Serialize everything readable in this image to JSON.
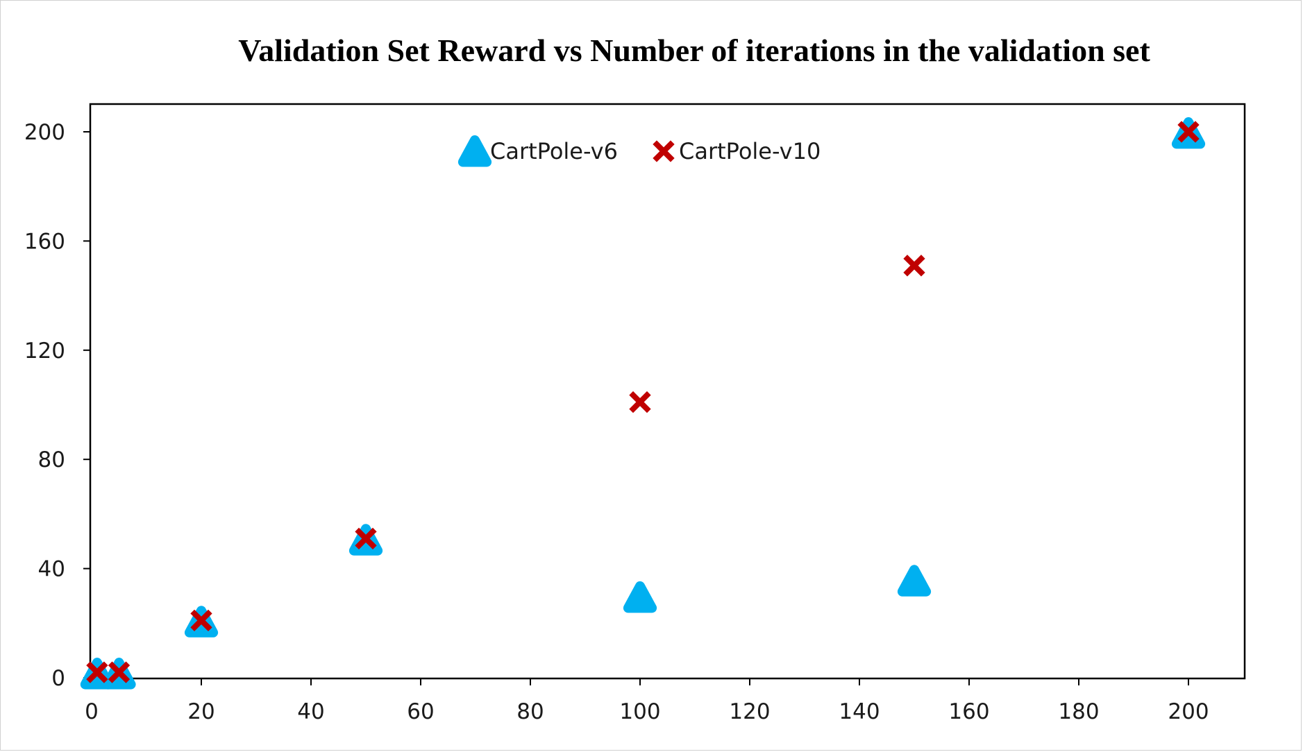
{
  "chart_data": {
    "type": "scatter",
    "title": "Validation Set Reward vs Number of iterations in the validation set",
    "xlabel": "",
    "ylabel": "",
    "xlim": [
      0,
      210
    ],
    "ylim": [
      0,
      210
    ],
    "xticks": [
      0,
      20,
      40,
      60,
      80,
      100,
      120,
      140,
      160,
      180,
      200
    ],
    "yticks": [
      0,
      40,
      80,
      120,
      160,
      200
    ],
    "grid": false,
    "legend_position": "top-center",
    "series": [
      {
        "name": "CartPole-v6",
        "marker": "triangle",
        "color": "#00b0f0",
        "points": [
          {
            "x": 1,
            "y": 1
          },
          {
            "x": 5,
            "y": 1
          },
          {
            "x": 20,
            "y": 20
          },
          {
            "x": 50,
            "y": 50
          },
          {
            "x": 100,
            "y": 29
          },
          {
            "x": 150,
            "y": 35
          },
          {
            "x": 200,
            "y": 199
          }
        ]
      },
      {
        "name": "CartPole-v10",
        "marker": "x",
        "color": "#c00000",
        "points": [
          {
            "x": 1,
            "y": 2
          },
          {
            "x": 5,
            "y": 2
          },
          {
            "x": 20,
            "y": 21
          },
          {
            "x": 50,
            "y": 51
          },
          {
            "x": 100,
            "y": 101
          },
          {
            "x": 150,
            "y": 151
          },
          {
            "x": 200,
            "y": 200
          }
        ]
      }
    ]
  }
}
